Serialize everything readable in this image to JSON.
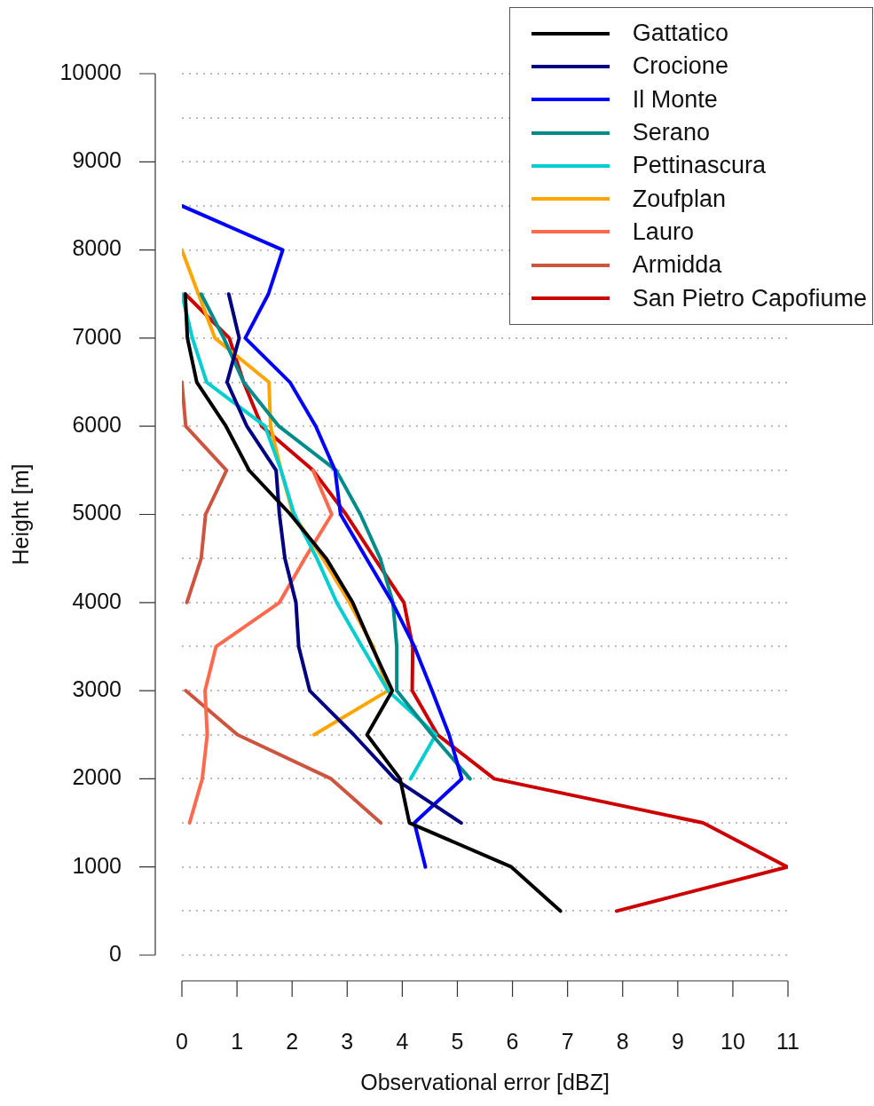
{
  "chart_data": {
    "type": "line",
    "xlabel": "Observational error [dBZ]",
    "ylabel": "Height [m]",
    "xlim": [
      0,
      11
    ],
    "xticks": [
      0,
      1,
      2,
      3,
      4,
      5,
      6,
      7,
      8,
      9,
      10,
      11
    ],
    "ylim": [
      0,
      10000
    ],
    "yticks": [
      0,
      {
        "value": 500,
        "label": null
      },
      1000,
      {
        "value": 1500,
        "label": null
      },
      2000,
      {
        "value": 2500,
        "label": null
      },
      3000,
      {
        "value": 3500,
        "label": null
      },
      4000,
      {
        "value": 4500,
        "label": null
      },
      5000,
      {
        "value": 5500,
        "label": null
      },
      6000,
      {
        "value": 6500,
        "label": null
      },
      7000,
      {
        "value": 7500,
        "label": null
      },
      8000,
      {
        "value": 8500,
        "label": null
      },
      9000,
      {
        "value": 9500,
        "label": null
      },
      10000
    ],
    "grid": "y",
    "legend": "top right",
    "marker": "none",
    "line_style": "solid",
    "series": [
      {
        "name": "Gattatico",
        "color": "#000000",
        "x": [
          0.06,
          0.1,
          0.27,
          0.8,
          1.22,
          1.97,
          2.62,
          3.1,
          3.45,
          3.82,
          3.36,
          3.96,
          4.13,
          5.98,
          6.87
        ],
        "values": [
          7500,
          7000,
          6500,
          6000,
          5500,
          5000,
          4500,
          4000,
          3500,
          3000,
          2500,
          2000,
          1500,
          1000,
          500
        ]
      },
      {
        "name": "Crocione",
        "color": "#000080",
        "x": [
          0.85,
          1.04,
          0.82,
          1.18,
          1.71,
          1.77,
          1.87,
          2.07,
          2.12,
          2.32,
          3.12,
          3.86,
          5.07
        ],
        "values": [
          7500,
          7000,
          6500,
          6000,
          5500,
          5000,
          4500,
          4000,
          3500,
          3000,
          2500,
          2000,
          1500
        ]
      },
      {
        "name": "Il Monte",
        "color": "#0000ff",
        "x": [
          0,
          1.83,
          1.57,
          1.15,
          1.96,
          2.43,
          2.78,
          2.88,
          3.35,
          3.82,
          4.22,
          4.54,
          4.85,
          5.08,
          4.22,
          4.42
        ],
        "values": [
          8500,
          8000,
          7500,
          7000,
          6500,
          6000,
          5500,
          5000,
          4500,
          4000,
          3500,
          3000,
          2500,
          2000,
          1500,
          1000
        ]
      },
      {
        "name": "Serano",
        "color": "#008b8b",
        "x": [
          0.35,
          0.76,
          1.12,
          1.76,
          2.8,
          3.24,
          3.6,
          3.83,
          3.9,
          3.9,
          4.54,
          5.23
        ],
        "values": [
          7500,
          7000,
          6500,
          6000,
          5500,
          5000,
          4500,
          4000,
          3500,
          3000,
          2500,
          2000
        ]
      },
      {
        "name": "Pettinascura",
        "color": "#00ced1",
        "x": [
          0,
          0.19,
          0.45,
          1.51,
          1.8,
          2.04,
          2.45,
          2.81,
          3.27,
          3.74,
          4.61,
          4.15
        ],
        "values": [
          7500,
          7000,
          6500,
          6000,
          5500,
          5000,
          4500,
          4000,
          3500,
          3000,
          2500,
          2000
        ]
      },
      {
        "name": "Zoufplan",
        "color": "#ffa500",
        "x": [
          0,
          0.3,
          0.6,
          1.58,
          1.61,
          1.8,
          2.02,
          2.56,
          3.04,
          3.47,
          3.74,
          2.4
        ],
        "values": [
          8000,
          7500,
          7000,
          6500,
          6000,
          5500,
          5000,
          4500,
          4000,
          3500,
          3000,
          2500
        ]
      },
      {
        "name": "Lauro",
        "color": "#ff6a4d",
        "x": [
          2.38,
          2.72,
          2.23,
          1.77,
          0.62,
          0.42,
          0.46,
          0.37,
          0.14
        ],
        "values": [
          5500,
          5000,
          4500,
          4000,
          3500,
          3000,
          2500,
          2000,
          1500
        ]
      },
      {
        "name": "Armidda",
        "color": "#cd5540",
        "x": [
          0,
          0.07,
          0.81,
          0.43,
          0.35,
          0.09,
          null,
          0.07,
          1.01,
          2.71,
          3.61
        ],
        "values": [
          6500,
          6000,
          5500,
          5000,
          4500,
          4000,
          null,
          3000,
          2500,
          2000,
          1500
        ]
      },
      {
        "name": "San Pietro Capofiume",
        "color": "#cc0000",
        "x": [
          0.06,
          0.86,
          1.12,
          1.45,
          2.38,
          2.98,
          3.5,
          4.03,
          4.19,
          4.18,
          4.64,
          5.67,
          9.46,
          10.99,
          7.89
        ],
        "values": [
          7500,
          7000,
          6500,
          6000,
          5500,
          5000,
          4500,
          4000,
          3500,
          3000,
          2500,
          2000,
          1500,
          1000,
          500
        ]
      }
    ]
  }
}
